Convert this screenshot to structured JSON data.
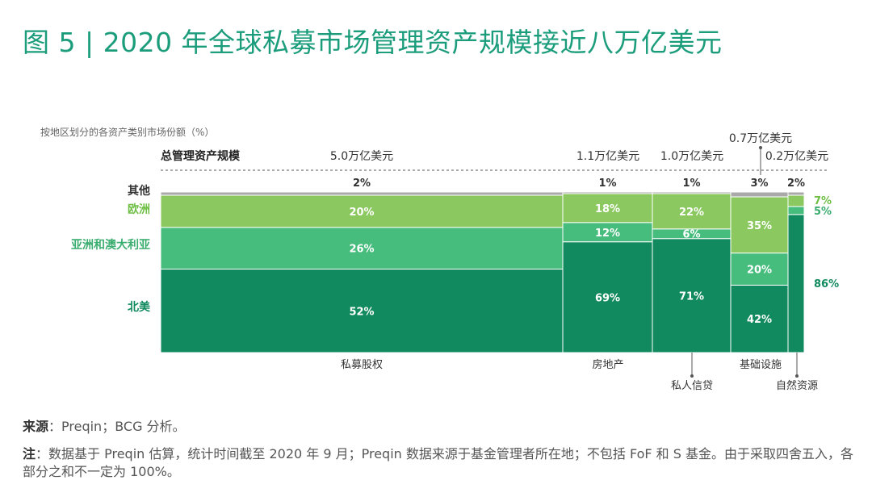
{
  "title": "图 5 | 2020 年全球私募市场管理资产规模接近八万亿美元",
  "chart_data": {
    "type": "bar",
    "subtitle": "按地区划分的各资产类别市场份额（%）",
    "total_label": "总管理资产规模",
    "series": [
      {
        "name": "北美",
        "color": "#128a5f",
        "text_color": "#128a5f"
      },
      {
        "name": "亚洲和澳大利亚",
        "color": "#46bd7c",
        "text_color": "#3aad6f"
      },
      {
        "name": "欧洲",
        "color": "#8bc960",
        "text_color": "#6fbf45"
      },
      {
        "name": "其他",
        "color": "#a9a9a9",
        "text_color": "#333333"
      }
    ],
    "categories": [
      {
        "name": "私募股权",
        "aum": "5.0万亿美元",
        "values": [
          52,
          26,
          20,
          2
        ],
        "labels": [
          "52%",
          "26%",
          "20%",
          "2%"
        ]
      },
      {
        "name": "房地产",
        "aum": "1.1万亿美元",
        "values": [
          69,
          12,
          18,
          1
        ],
        "labels": [
          "69%",
          "12%",
          "18%",
          "1%"
        ]
      },
      {
        "name": "私人信贷",
        "aum": "1.0万亿美元",
        "values": [
          71,
          6,
          22,
          1
        ],
        "labels": [
          "71%",
          "6%",
          "22%",
          "1%"
        ]
      },
      {
        "name": "基础设施",
        "aum": "0.7万亿美元",
        "values": [
          42,
          20,
          35,
          3
        ],
        "labels": [
          "42%",
          "20%",
          "35%",
          "3%"
        ]
      },
      {
        "name": "自然资源",
        "aum": "0.2万亿美元",
        "values": [
          86,
          5,
          7,
          2
        ],
        "labels": [
          "86%",
          "5%",
          "7%",
          "2%"
        ]
      }
    ]
  },
  "footer": {
    "source_label": "来源",
    "source_text": "：Preqin；BCG 分析。",
    "note_label": "注",
    "note_text": "：数据基于 Preqin 估算，统计时间截至 2020 年 9 月；Preqin 数据来源于基金管理者所在地；不包括 FoF 和 S 基金。由于采取四舍五入，各部分之和不一定为 100%。"
  }
}
